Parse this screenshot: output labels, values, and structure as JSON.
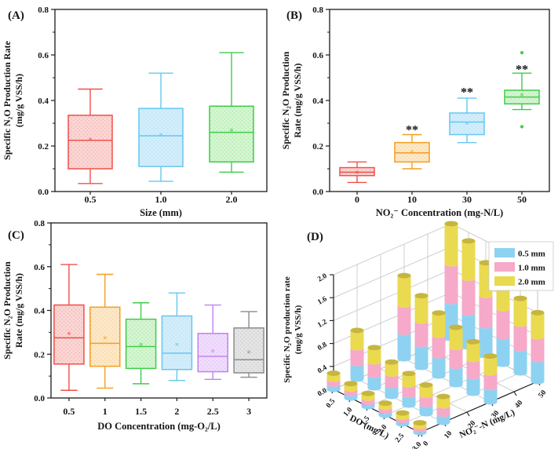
{
  "figure": {
    "background": "#ffffff",
    "axis_color": "#1a1a1a",
    "grid_color": "#c3c3c3"
  },
  "chart_data": [
    {
      "id": "A",
      "type": "box",
      "panel_label": "(A)",
      "ylabel_lines": [
        "Specific N₂O Production Rate",
        "(mg/g VSS/h)"
      ],
      "xlabel": "Size (mm)",
      "ylim": [
        0.0,
        0.8
      ],
      "yticks": [
        "0.0",
        "0.2",
        "0.4",
        "0.6",
        "0.8"
      ],
      "categories": [
        "0.5",
        "1.0",
        "2.0"
      ],
      "boxes": [
        {
          "category": "0.5",
          "stroke": "#F0504B",
          "fill": "#FAD6D4",
          "low": 0.035,
          "q1": 0.1,
          "median": 0.225,
          "q3": 0.335,
          "high": 0.45,
          "mean": 0.23
        },
        {
          "category": "1.0",
          "stroke": "#66C7F0",
          "fill": "#D3EDFA",
          "low": 0.045,
          "q1": 0.11,
          "median": 0.245,
          "q3": 0.365,
          "high": 0.52,
          "mean": 0.25
        },
        {
          "category": "2.0",
          "stroke": "#3ECC49",
          "fill": "#D6F4D2",
          "low": 0.085,
          "q1": 0.13,
          "median": 0.26,
          "q3": 0.375,
          "high": 0.61,
          "mean": 0.27
        }
      ]
    },
    {
      "id": "B",
      "type": "box",
      "panel_label": "(B)",
      "ylabel_lines": [
        "Specific N₂O Production",
        "Rate (mg/g VSS/h)"
      ],
      "xlabel": "NO₂⁻ Concentration (mg-N/L)",
      "ylim": [
        0.0,
        0.8
      ],
      "yticks": [
        "0.0",
        "0.2",
        "0.4",
        "0.6",
        "0.8"
      ],
      "categories": [
        "0",
        "10",
        "30",
        "50"
      ],
      "boxes": [
        {
          "category": "0",
          "stroke": "#F0504B",
          "fill": "#FAD6D4",
          "low": 0.04,
          "q1": 0.07,
          "median": 0.085,
          "q3": 0.105,
          "high": 0.13,
          "mean": 0.085
        },
        {
          "category": "10",
          "stroke": "#F59E1E",
          "fill": "#FCE8C8",
          "low": 0.1,
          "q1": 0.13,
          "median": 0.17,
          "q3": 0.215,
          "high": 0.25,
          "mean": 0.175,
          "significance": "**",
          "sig_y": 0.285
        },
        {
          "category": "30",
          "stroke": "#66C7F0",
          "fill": "#D3EDFA",
          "low": 0.215,
          "q1": 0.25,
          "median": 0.305,
          "q3": 0.345,
          "high": 0.41,
          "mean": 0.3,
          "significance": "**",
          "sig_y": 0.45
        },
        {
          "category": "50",
          "stroke": "#3ECC49",
          "fill": "#D6F4D2",
          "low": 0.36,
          "q1": 0.385,
          "median": 0.415,
          "q3": 0.445,
          "high": 0.52,
          "mean": 0.425,
          "significance": "**",
          "sig_y": 0.55,
          "outliers": [
            0.61,
            0.285
          ]
        }
      ]
    },
    {
      "id": "C",
      "type": "box",
      "panel_label": "(C)",
      "ylabel_lines": [
        "Specific N₂O Production",
        "Rate (mg/g VSS/h)"
      ],
      "xlabel": "DO Concentration (mg-O₂/L)",
      "ylim": [
        0.0,
        0.8
      ],
      "yticks": [
        "0.0",
        "0.2",
        "0.4",
        "0.6",
        "0.8"
      ],
      "categories": [
        "0.5",
        "1",
        "1.5",
        "2",
        "2.5",
        "3"
      ],
      "boxes": [
        {
          "category": "0.5",
          "stroke": "#F0504B",
          "fill": "#FAD6D4",
          "low": 0.035,
          "q1": 0.155,
          "median": 0.275,
          "q3": 0.425,
          "high": 0.61,
          "mean": 0.295
        },
        {
          "category": "1",
          "stroke": "#F59E1E",
          "fill": "#FCE8C8",
          "low": 0.045,
          "q1": 0.145,
          "median": 0.25,
          "q3": 0.415,
          "high": 0.565,
          "mean": 0.275
        },
        {
          "category": "1.5",
          "stroke": "#3ECC49",
          "fill": "#D6F4D2",
          "low": 0.065,
          "q1": 0.135,
          "median": 0.235,
          "q3": 0.36,
          "high": 0.435,
          "mean": 0.245
        },
        {
          "category": "2",
          "stroke": "#66C7F0",
          "fill": "#D3EDFA",
          "low": 0.08,
          "q1": 0.13,
          "median": 0.205,
          "q3": 0.375,
          "high": 0.48,
          "mean": 0.245
        },
        {
          "category": "2.5",
          "stroke": "#C183EF",
          "fill": "#EFDDFB",
          "low": 0.085,
          "q1": 0.12,
          "median": 0.19,
          "q3": 0.295,
          "high": 0.425,
          "mean": 0.215
        },
        {
          "category": "3",
          "stroke": "#8C8C8C",
          "fill": "#E4E4E4",
          "low": 0.095,
          "q1": 0.115,
          "median": 0.175,
          "q3": 0.32,
          "high": 0.395,
          "mean": 0.21
        }
      ]
    },
    {
      "id": "D",
      "type": "bar3d",
      "panel_label": "(D)",
      "zlabel_lines": [
        "Specific N₂O production rate",
        "(mg/g VSS/h)"
      ],
      "xlabel": "DO (mg/L)",
      "ylabel": "NO₂⁻-N (mg/L)",
      "zlim": [
        0.0,
        2.0
      ],
      "zticks": [
        "0.0",
        "0.4",
        "0.8",
        "1.2",
        "1.6",
        "2.0"
      ],
      "xticks": [
        "0.5",
        "1.0",
        "1.5",
        "2.0",
        "2.5",
        "3.0"
      ],
      "yticks": [
        "0",
        "10",
        "20",
        "30",
        "40",
        "50"
      ],
      "legend": [
        {
          "label": "0.5 mm",
          "color": "#8ED2F2"
        },
        {
          "label": "1.0 mm",
          "color": "#F6A9C8"
        },
        {
          "label": "2.0 mm",
          "color": "#EADA4F"
        }
      ],
      "bar_top_color": "#C6B63E",
      "bars": [
        {
          "do": "0.5",
          "no2": "0",
          "values": [
            0.09,
            0.09,
            0.1
          ]
        },
        {
          "do": "1.0",
          "no2": "0",
          "values": [
            0.08,
            0.08,
            0.09
          ]
        },
        {
          "do": "1.5",
          "no2": "0",
          "values": [
            0.07,
            0.08,
            0.08
          ]
        },
        {
          "do": "2.0",
          "no2": "0",
          "values": [
            0.07,
            0.07,
            0.07
          ]
        },
        {
          "do": "2.5",
          "no2": "0",
          "values": [
            0.06,
            0.06,
            0.07
          ]
        },
        {
          "do": "3.0",
          "no2": "0",
          "values": [
            0.05,
            0.06,
            0.06
          ]
        },
        {
          "do": "0.5",
          "no2": "10",
          "values": [
            0.27,
            0.28,
            0.3
          ]
        },
        {
          "do": "1.0",
          "no2": "10",
          "values": [
            0.22,
            0.23,
            0.25
          ]
        },
        {
          "do": "1.5",
          "no2": "10",
          "values": [
            0.19,
            0.2,
            0.21
          ]
        },
        {
          "do": "2.0",
          "no2": "10",
          "values": [
            0.17,
            0.18,
            0.2
          ]
        },
        {
          "do": "2.5",
          "no2": "10",
          "values": [
            0.16,
            0.16,
            0.18
          ]
        },
        {
          "do": "3.0",
          "no2": "10",
          "values": [
            0.14,
            0.15,
            0.16
          ]
        },
        {
          "do": "0.5",
          "no2": "30",
          "values": [
            0.46,
            0.48,
            0.51
          ]
        },
        {
          "do": "1.0",
          "no2": "30",
          "values": [
            0.4,
            0.41,
            0.44
          ]
        },
        {
          "do": "1.5",
          "no2": "30",
          "values": [
            0.35,
            0.36,
            0.39
          ]
        },
        {
          "do": "2.0",
          "no2": "30",
          "values": [
            0.32,
            0.33,
            0.35
          ]
        },
        {
          "do": "2.5",
          "no2": "30",
          "values": [
            0.29,
            0.3,
            0.31
          ]
        },
        {
          "do": "3.0",
          "no2": "30",
          "values": [
            0.25,
            0.26,
            0.29
          ]
        },
        {
          "do": "0.5",
          "no2": "50",
          "values": [
            0.64,
            0.66,
            0.7
          ]
        },
        {
          "do": "1.0",
          "no2": "50",
          "values": [
            0.59,
            0.61,
            0.65
          ]
        },
        {
          "do": "1.5",
          "no2": "50",
          "values": [
            0.52,
            0.53,
            0.57
          ]
        },
        {
          "do": "2.0",
          "no2": "50",
          "values": [
            0.48,
            0.49,
            0.53
          ]
        },
        {
          "do": "2.5",
          "no2": "50",
          "values": [
            0.42,
            0.43,
            0.45
          ]
        },
        {
          "do": "3.0",
          "no2": "50",
          "values": [
            0.38,
            0.4,
            0.42
          ]
        }
      ]
    }
  ]
}
